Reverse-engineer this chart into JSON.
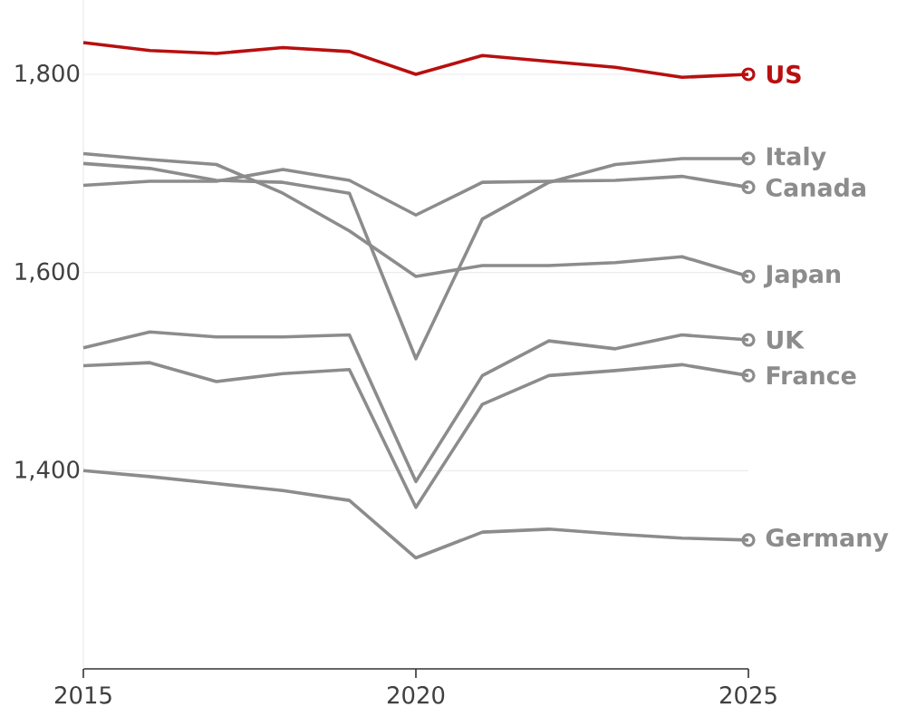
{
  "chart_data": {
    "type": "line",
    "x": [
      2015,
      2016,
      2017,
      2018,
      2019,
      2020,
      2021,
      2022,
      2023,
      2024,
      2025
    ],
    "xlim": [
      2015,
      2025
    ],
    "xticks": [
      2015,
      2020,
      2025
    ],
    "ylim": [
      1200,
      1875
    ],
    "yticks": [
      {
        "value": 1400,
        "label": "1,400"
      },
      {
        "value": 1600,
        "label": "1,600"
      },
      {
        "value": 1800,
        "label": "1,800"
      }
    ],
    "grid": "y",
    "legend": false,
    "line_style": "solid",
    "series": [
      {
        "name": "US",
        "color": "#b80f0f",
        "values": [
          1832,
          1824,
          1821,
          1827,
          1823,
          1800,
          1819,
          1813,
          1807,
          1797,
          1800
        ]
      },
      {
        "name": "Italy",
        "color": "#8c8c8c",
        "values": [
          1710,
          1705,
          1693,
          1691,
          1680,
          1513,
          1654,
          1691,
          1709,
          1715,
          1715
        ]
      },
      {
        "name": "Canada",
        "color": "#8c8c8c",
        "values": [
          1688,
          1692,
          1692,
          1704,
          1693,
          1658,
          1691,
          1692,
          1693,
          1697,
          1686
        ]
      },
      {
        "name": "Japan",
        "color": "#8c8c8c",
        "values": [
          1720,
          1714,
          1709,
          1680,
          1642,
          1596,
          1607,
          1607,
          1610,
          1616,
          1596
        ]
      },
      {
        "name": "UK",
        "color": "#8c8c8c",
        "values": [
          1524,
          1540,
          1535,
          1535,
          1537,
          1389,
          1496,
          1531,
          1523,
          1537,
          1532
        ]
      },
      {
        "name": "France",
        "color": "#8c8c8c",
        "values": [
          1506,
          1509,
          1490,
          1498,
          1502,
          1363,
          1467,
          1496,
          1501,
          1507,
          1496
        ]
      },
      {
        "name": "Germany",
        "color": "#8c8c8c",
        "values": [
          1400,
          1394,
          1387,
          1380,
          1370,
          1312,
          1338,
          1341,
          1336,
          1332,
          1330
        ]
      }
    ]
  }
}
